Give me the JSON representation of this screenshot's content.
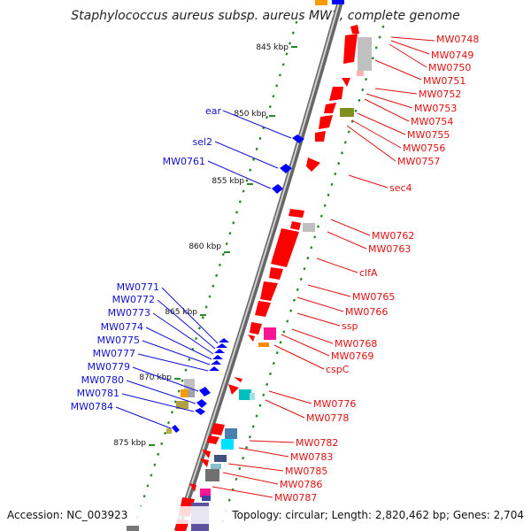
{
  "title": "Staphylococcus aureus subsp. aureus MW2, complete genome",
  "footer": {
    "accession": "Accession: NC_003923",
    "summary": "Topology: circular; Length: 2,820,462 bp; Genes: 2,704"
  },
  "colors": {
    "plus_strand": "#ff0000",
    "minus_strand": "#0000ff",
    "backbone": "#888888",
    "tick": "#2a8a2a",
    "left_label": "#1010d0",
    "right_label": "#e01010"
  },
  "ticks": [
    {
      "label": "845 kbp"
    },
    {
      "label": "850 kbp"
    },
    {
      "label": "855 kbp"
    },
    {
      "label": "860 kbp"
    },
    {
      "label": "865 kbp"
    },
    {
      "label": "870 kbp"
    },
    {
      "label": "875 kbp"
    }
  ],
  "left_labels": [
    "ear",
    "sel2",
    "MW0761",
    "MW0771",
    "MW0772",
    "MW0773",
    "MW0774",
    "MW0775",
    "MW0777",
    "MW0779",
    "MW0780",
    "MW0781",
    "MW0784"
  ],
  "right_labels": [
    "MW0748",
    "MW0749",
    "MW0750",
    "MW0751",
    "MW0752",
    "MW0753",
    "MW0754",
    "MW0755",
    "MW0756",
    "MW0757",
    "sec4",
    "MW0762",
    "MW0763",
    "clfA",
    "MW0765",
    "MW0766",
    "ssp",
    "MW0768",
    "MW0769",
    "cspC",
    "MW0776",
    "MW0778",
    "MW0782",
    "MW0783",
    "MW0785",
    "MW0786",
    "MW0787"
  ]
}
